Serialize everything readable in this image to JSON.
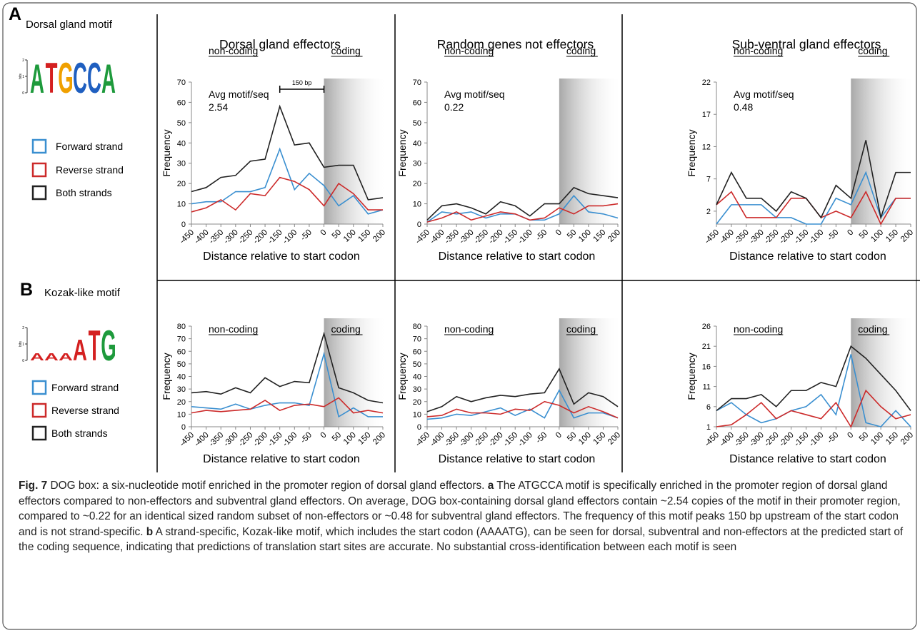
{
  "panels": [
    {
      "label": "A",
      "motif": "Dorsal gland motif",
      "logo": {
        "letters": [
          "A",
          "T",
          "G",
          "C",
          "C",
          "A"
        ],
        "bits": [
          1.8,
          1.9,
          1.9,
          1.9,
          1.9,
          1.8
        ],
        "colors": [
          "#1e9a3c",
          "#d42020",
          "#f0a000",
          "#1f5fc0",
          "#1f5fc0",
          "#1e9a3c"
        ],
        "ylim": [
          0,
          2
        ],
        "yticks": [
          0,
          1,
          2
        ],
        "ylabel": "bits"
      }
    },
    {
      "label": "B",
      "motif": "Kozak-like motif",
      "logo": {
        "letters": [
          "A",
          "A",
          "A",
          "A",
          "T",
          "G"
        ],
        "bits": [
          0.45,
          0.45,
          0.45,
          1.3,
          1.9,
          1.9
        ],
        "colors": [
          "#d42020",
          "#d42020",
          "#d42020",
          "#d42020",
          "#d42020",
          "#1e9a3c"
        ],
        "ylim": [
          0,
          2
        ],
        "yticks": [
          0,
          1,
          2
        ],
        "ylabel": "bits"
      }
    }
  ],
  "chart_data": [
    {
      "type": "line",
      "title": "Dorsal gland effectors",
      "xlabel": "Distance relative to start codon",
      "ylabel": "Frequency",
      "noncoding": "non-coding",
      "coding": "coding",
      "avg_label": "Avg motif/seq",
      "avg_value": 2.54,
      "bracket": {
        "label": "150 bp",
        "x": [
          -150,
          0
        ]
      },
      "x": [
        -450,
        -400,
        -350,
        -300,
        -250,
        -200,
        -150,
        -100,
        -50,
        0,
        50,
        100,
        150,
        200
      ],
      "xticks": [
        -450,
        -400,
        -350,
        -300,
        -250,
        -200,
        -150,
        -100,
        -50,
        0,
        50,
        100,
        150,
        200
      ],
      "xlim": [
        -450,
        200
      ],
      "ylim": [
        0,
        70
      ],
      "yticks": [
        0,
        10,
        20,
        30,
        40,
        50,
        60,
        70
      ],
      "series": [
        {
          "name": "Forward strand",
          "color": "#3a8fd0",
          "values": [
            10,
            11,
            11,
            16,
            16,
            18,
            37,
            17,
            25,
            19,
            9,
            14,
            5,
            7
          ]
        },
        {
          "name": "Reverse strand",
          "color": "#cc2a2a",
          "values": [
            6,
            8,
            12,
            7,
            15,
            14,
            23,
            21,
            17,
            9,
            20,
            15,
            7,
            7
          ]
        },
        {
          "name": "Both strands",
          "color": "#222222",
          "values": [
            16,
            18,
            23,
            24,
            31,
            32,
            58,
            39,
            40,
            28,
            29,
            29,
            12,
            13
          ]
        }
      ]
    },
    {
      "type": "line",
      "title": "Random genes not effectors",
      "xlabel": "Distance relative to start codon",
      "ylabel": "Frequency",
      "noncoding": "non-coding",
      "coding": "coding",
      "avg_label": "Avg motif/seq",
      "avg_value": 0.22,
      "x": [
        -450,
        -400,
        -350,
        -300,
        -250,
        -200,
        -150,
        -100,
        -50,
        0,
        50,
        100,
        150,
        200
      ],
      "xticks": [
        -450,
        -400,
        -350,
        -300,
        -250,
        -200,
        -150,
        -100,
        -50,
        0,
        50,
        100,
        150,
        200
      ],
      "xlim": [
        -450,
        200
      ],
      "ylim": [
        0,
        70
      ],
      "yticks": [
        0,
        10,
        20,
        30,
        40,
        50,
        60,
        70
      ],
      "series": [
        {
          "name": "Forward strand",
          "color": "#3a8fd0",
          "values": [
            1,
            6,
            5,
            6,
            3,
            5,
            5,
            2,
            2,
            5,
            14,
            6,
            5,
            3
          ]
        },
        {
          "name": "Reverse strand",
          "color": "#cc2a2a",
          "values": [
            1,
            3,
            6,
            2,
            4,
            6,
            5,
            2,
            3,
            8,
            5,
            9,
            9,
            10
          ]
        },
        {
          "name": "Both strands",
          "color": "#222222",
          "values": [
            2,
            9,
            10,
            8,
            5,
            11,
            9,
            4,
            10,
            10,
            18,
            15,
            14,
            13
          ]
        }
      ]
    },
    {
      "type": "line",
      "title": "Sub-ventral gland effectors",
      "xlabel": "Distance relative to start codon",
      "ylabel": "Frequency",
      "noncoding": "non-coding",
      "coding": "coding",
      "avg_label": "Avg motif/seq",
      "avg_value": 0.48,
      "x": [
        -450,
        -400,
        -350,
        -300,
        -250,
        -200,
        -150,
        -100,
        -50,
        0,
        50,
        100,
        150,
        200
      ],
      "xticks": [
        -450,
        -400,
        -350,
        -300,
        -250,
        -200,
        -150,
        -100,
        -50,
        0,
        50,
        100,
        150,
        200
      ],
      "xlim": [
        -450,
        200
      ],
      "ylim": [
        0,
        22
      ],
      "yticks": [
        2,
        7,
        12,
        17,
        22
      ],
      "series": [
        {
          "name": "Forward strand",
          "color": "#3a8fd0",
          "values": [
            0,
            3,
            3,
            3,
            1,
            1,
            0,
            0,
            4,
            3,
            8,
            1,
            4,
            4
          ]
        },
        {
          "name": "Reverse strand",
          "color": "#cc2a2a",
          "values": [
            3,
            5,
            1,
            1,
            1,
            4,
            4,
            1,
            2,
            1,
            5,
            0,
            4,
            4
          ]
        },
        {
          "name": "Both strands",
          "color": "#222222",
          "values": [
            3,
            8,
            4,
            4,
            2,
            5,
            4,
            1,
            6,
            4,
            13,
            1,
            8,
            8
          ]
        }
      ]
    },
    {
      "type": "line",
      "xlabel": "Distance relative to start codon",
      "ylabel": "Frequency",
      "noncoding": "non-coding",
      "coding": "coding",
      "x": [
        -450,
        -400,
        -350,
        -300,
        -250,
        -200,
        -150,
        -100,
        -50,
        0,
        50,
        100,
        150,
        200
      ],
      "xticks": [
        -450,
        -400,
        -350,
        -300,
        -250,
        -200,
        -150,
        -100,
        -50,
        0,
        50,
        100,
        150,
        200
      ],
      "xlim": [
        -450,
        200
      ],
      "ylim": [
        0,
        80
      ],
      "yticks": [
        0,
        10,
        20,
        30,
        40,
        50,
        60,
        70,
        80
      ],
      "series": [
        {
          "name": "Forward strand",
          "color": "#3a8fd0",
          "values": [
            16,
            15,
            14,
            18,
            14,
            17,
            19,
            19,
            17,
            58,
            8,
            15,
            8,
            8
          ]
        },
        {
          "name": "Reverse strand",
          "color": "#cc2a2a",
          "values": [
            11,
            13,
            12,
            13,
            14,
            21,
            13,
            17,
            18,
            16,
            23,
            11,
            13,
            11
          ]
        },
        {
          "name": "Both strands",
          "color": "#222222",
          "values": [
            27,
            28,
            26,
            31,
            27,
            39,
            32,
            36,
            35,
            74,
            31,
            27,
            21,
            19
          ]
        }
      ]
    },
    {
      "type": "line",
      "xlabel": "Distance relative to start codon",
      "ylabel": "Frequency",
      "noncoding": "non-coding",
      "coding": "coding",
      "x": [
        -450,
        -400,
        -350,
        -300,
        -250,
        -200,
        -150,
        -100,
        -50,
        0,
        50,
        100,
        150,
        200
      ],
      "xticks": [
        -450,
        -400,
        -350,
        -300,
        -250,
        -200,
        -150,
        -100,
        -50,
        0,
        50,
        100,
        150,
        200
      ],
      "xlim": [
        -450,
        200
      ],
      "ylim": [
        0,
        80
      ],
      "yticks": [
        0,
        10,
        20,
        30,
        40,
        50,
        60,
        70,
        80
      ],
      "series": [
        {
          "name": "Forward strand",
          "color": "#3a8fd0",
          "values": [
            6,
            7,
            10,
            9,
            12,
            15,
            9,
            14,
            7,
            29,
            7,
            11,
            11,
            7
          ]
        },
        {
          "name": "Reverse strand",
          "color": "#cc2a2a",
          "values": [
            8,
            9,
            14,
            11,
            11,
            10,
            14,
            13,
            20,
            17,
            11,
            16,
            12,
            7
          ]
        },
        {
          "name": "Both strands",
          "color": "#222222",
          "values": [
            12,
            16,
            24,
            20,
            23,
            25,
            24,
            26,
            27,
            46,
            18,
            27,
            24,
            16
          ]
        }
      ]
    },
    {
      "type": "line",
      "xlabel": "Distance relative to start codon",
      "ylabel": "Frequency",
      "noncoding": "non-coding",
      "coding": "coding",
      "x": [
        -450,
        -400,
        -350,
        -300,
        -250,
        -200,
        -150,
        -100,
        -50,
        0,
        50,
        100,
        150,
        200
      ],
      "xticks": [
        -450,
        -400,
        -350,
        -300,
        -250,
        -200,
        -150,
        -100,
        -50,
        0,
        50,
        100,
        150,
        200
      ],
      "xlim": [
        -450,
        200
      ],
      "ylim": [
        1,
        26
      ],
      "yticks": [
        1,
        6,
        11,
        16,
        21,
        26
      ],
      "series": [
        {
          "name": "Forward strand",
          "color": "#3a8fd0",
          "values": [
            5,
            7,
            4,
            2,
            3,
            5,
            6,
            9,
            4,
            19,
            2,
            1,
            5,
            1
          ]
        },
        {
          "name": "Reverse strand",
          "color": "#cc2a2a",
          "values": [
            1,
            1.5,
            4,
            7,
            3,
            5,
            4,
            3,
            7,
            1,
            10,
            6,
            3,
            4
          ]
        },
        {
          "name": "Both strands",
          "color": "#222222",
          "values": [
            5,
            8,
            8,
            9,
            6,
            10,
            10,
            12,
            11,
            21,
            18,
            14,
            10,
            5
          ]
        }
      ]
    }
  ],
  "caption": {
    "figure": "Fig. 7",
    "title": "DOG box: a six-nucleotide motif enriched in the promoter region of dorsal gland effectors.",
    "a_label": "a",
    "a_text": "The ATGCCA motif is specifically enriched in the promoter region of dorsal gland effectors compared to non-effectors and subventral gland effectors. On average, DOG box-containing dorsal gland effectors contain ~2.54 copies of the motif in their promoter region, compared to ~0.22 for an identical sized random subset of non-effectors or ~0.48 for subventral gland effectors. The frequency of this motif peaks 150 bp upstream of the start codon and is not strand-specific.",
    "b_label": "b",
    "b_text": "A strand-specific, Kozak-like motif, which includes the start codon (AAAATG), can be seen for dorsal, subventral and non-effectors at the predicted start of the coding sequence, indicating that predictions of translation start sites are accurate. No substantial cross-identification between each motif is seen"
  }
}
